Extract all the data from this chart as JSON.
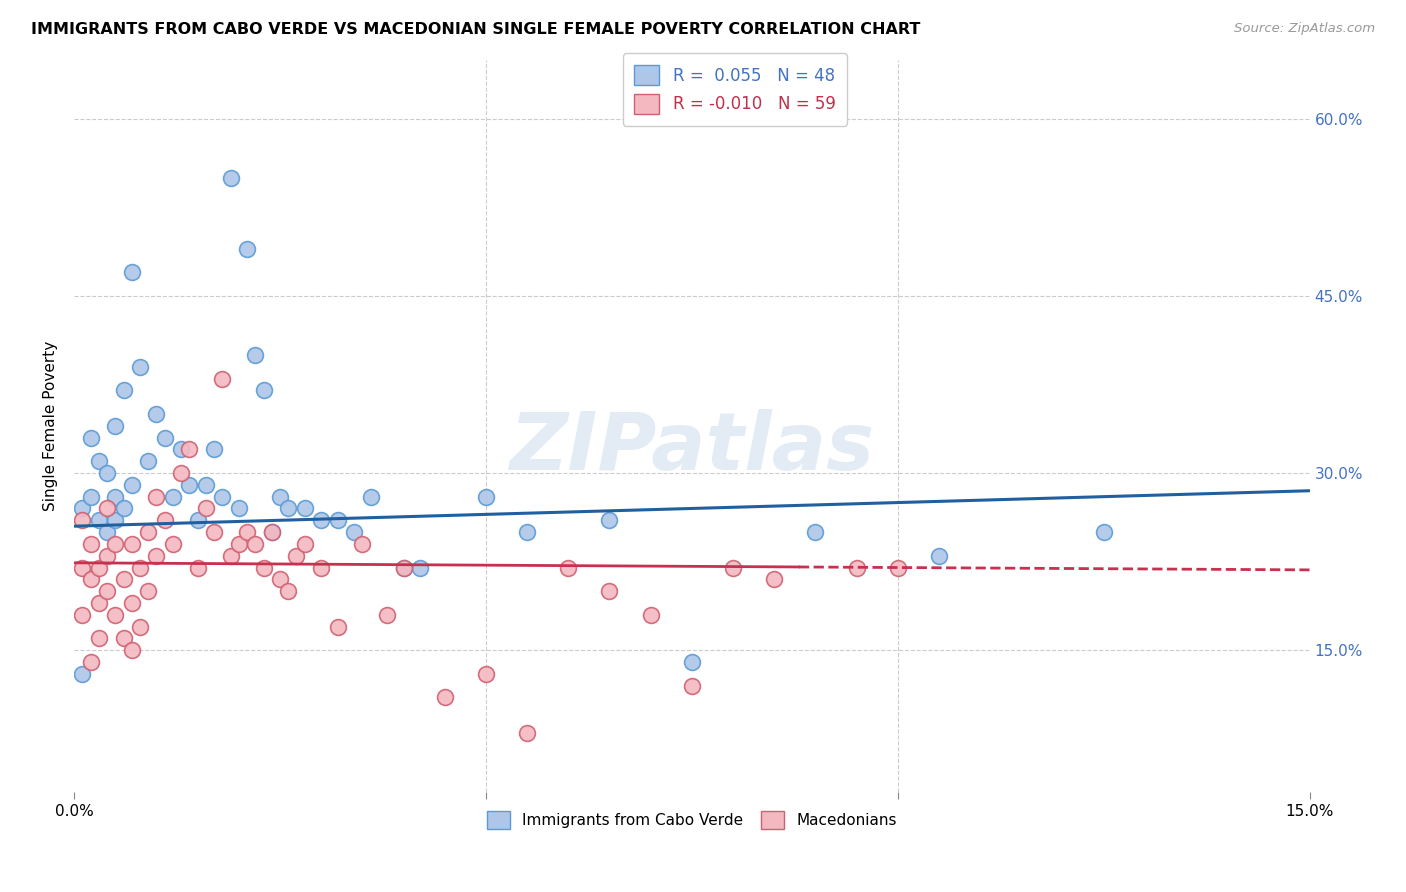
{
  "title": "IMMIGRANTS FROM CABO VERDE VS MACEDONIAN SINGLE FEMALE POVERTY CORRELATION CHART",
  "source": "Source: ZipAtlas.com",
  "ylabel": "Single Female Poverty",
  "yticks": [
    "15.0%",
    "30.0%",
    "45.0%",
    "60.0%"
  ],
  "ytick_vals": [
    0.15,
    0.3,
    0.45,
    0.6
  ],
  "xlim": [
    0.0,
    0.15
  ],
  "ylim": [
    0.03,
    0.65
  ],
  "legend_cabo": "Immigrants from Cabo Verde",
  "legend_mac": "Macedonians",
  "R_cabo": "0.055",
  "N_cabo": "48",
  "R_mac": "-0.010",
  "N_mac": "59",
  "cabo_color": "#aec6e8",
  "cabo_edge": "#5b9bd5",
  "mac_color": "#f4b8c1",
  "mac_edge": "#d06070",
  "cabo_line_color": "#2060a0",
  "mac_line_color": "#c83050",
  "watermark": "ZIPatlas",
  "cabo_points_x": [
    0.001,
    0.001,
    0.002,
    0.002,
    0.003,
    0.003,
    0.004,
    0.004,
    0.005,
    0.005,
    0.005,
    0.006,
    0.006,
    0.007,
    0.007,
    0.008,
    0.009,
    0.01,
    0.011,
    0.012,
    0.013,
    0.014,
    0.015,
    0.016,
    0.017,
    0.018,
    0.019,
    0.02,
    0.021,
    0.022,
    0.023,
    0.024,
    0.025,
    0.026,
    0.028,
    0.03,
    0.032,
    0.034,
    0.036,
    0.04,
    0.042,
    0.05,
    0.055,
    0.065,
    0.075,
    0.09,
    0.105,
    0.125
  ],
  "cabo_points_y": [
    0.27,
    0.13,
    0.28,
    0.33,
    0.26,
    0.31,
    0.25,
    0.3,
    0.26,
    0.34,
    0.28,
    0.37,
    0.27,
    0.47,
    0.29,
    0.39,
    0.31,
    0.35,
    0.33,
    0.28,
    0.32,
    0.29,
    0.26,
    0.29,
    0.32,
    0.28,
    0.55,
    0.27,
    0.49,
    0.4,
    0.37,
    0.25,
    0.28,
    0.27,
    0.27,
    0.26,
    0.26,
    0.25,
    0.28,
    0.22,
    0.22,
    0.28,
    0.25,
    0.26,
    0.14,
    0.25,
    0.23,
    0.25
  ],
  "mac_points_x": [
    0.001,
    0.001,
    0.001,
    0.002,
    0.002,
    0.002,
    0.003,
    0.003,
    0.003,
    0.004,
    0.004,
    0.004,
    0.005,
    0.005,
    0.006,
    0.006,
    0.007,
    0.007,
    0.007,
    0.008,
    0.008,
    0.009,
    0.009,
    0.01,
    0.01,
    0.011,
    0.012,
    0.013,
    0.014,
    0.015,
    0.016,
    0.017,
    0.018,
    0.019,
    0.02,
    0.021,
    0.022,
    0.023,
    0.024,
    0.025,
    0.026,
    0.027,
    0.028,
    0.03,
    0.032,
    0.035,
    0.038,
    0.04,
    0.045,
    0.05,
    0.055,
    0.06,
    0.065,
    0.07,
    0.075,
    0.08,
    0.085,
    0.095,
    0.1
  ],
  "mac_points_y": [
    0.22,
    0.18,
    0.26,
    0.21,
    0.24,
    0.14,
    0.19,
    0.22,
    0.16,
    0.2,
    0.23,
    0.27,
    0.18,
    0.24,
    0.16,
    0.21,
    0.19,
    0.24,
    0.15,
    0.17,
    0.22,
    0.2,
    0.25,
    0.23,
    0.28,
    0.26,
    0.24,
    0.3,
    0.32,
    0.22,
    0.27,
    0.25,
    0.38,
    0.23,
    0.24,
    0.25,
    0.24,
    0.22,
    0.25,
    0.21,
    0.2,
    0.23,
    0.24,
    0.22,
    0.17,
    0.24,
    0.18,
    0.22,
    0.11,
    0.13,
    0.08,
    0.22,
    0.2,
    0.18,
    0.12,
    0.22,
    0.21,
    0.22,
    0.22
  ]
}
